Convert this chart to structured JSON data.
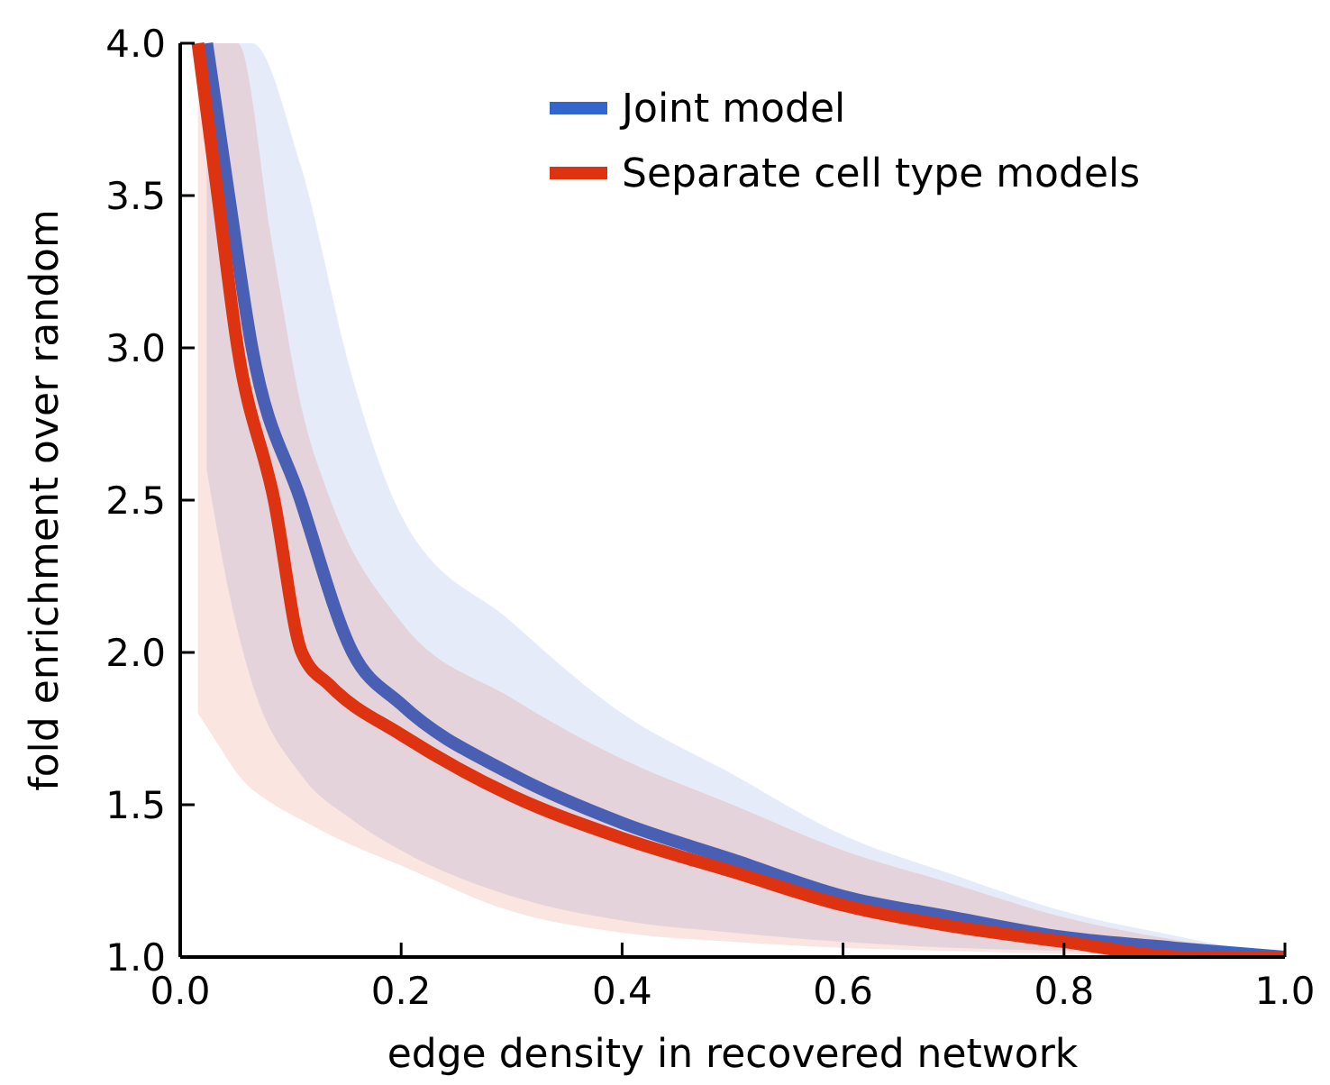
{
  "chart_data": {
    "type": "line",
    "xlabel": "edge density in recovered network",
    "ylabel": "fold enrichment over random",
    "xlim": [
      0,
      1
    ],
    "ylim": [
      1,
      4
    ],
    "xticks": [
      {
        "value": 0,
        "label": "0.0"
      },
      0.2,
      0.4,
      0.6,
      0.8,
      {
        "value": 1,
        "label": "1.0"
      }
    ],
    "yticks": [
      {
        "value": 1,
        "label": "1.0"
      },
      1.5,
      {
        "value": 2,
        "label": "2.0"
      },
      2.5,
      {
        "value": 3,
        "label": "3.0"
      },
      3.5,
      {
        "value": 4,
        "label": "4.0"
      }
    ],
    "grid": false,
    "legend": "top right",
    "line_style": "solid",
    "marker": "none",
    "series": [
      {
        "name": "Joint model",
        "color": "#3366cc",
        "x": [
          0.024,
          0.044,
          0.065,
          0.109,
          0.156,
          0.2,
          0.3,
          0.4,
          0.5,
          0.6,
          0.7,
          0.8,
          0.9,
          1.0
        ],
        "values": [
          4.0,
          3.5,
          3.0,
          2.5,
          2.0,
          1.83,
          1.6,
          1.44,
          1.32,
          1.2,
          1.13,
          1.065,
          1.03,
          1.0
        ],
        "upper": [
          4.0,
          4.0,
          4.0,
          3.6,
          2.9,
          2.45,
          2.1,
          1.8,
          1.6,
          1.4,
          1.27,
          1.15,
          1.07,
          1.0
        ],
        "lower": [
          2.6,
          2.2,
          1.9,
          1.6,
          1.45,
          1.35,
          1.2,
          1.12,
          1.08,
          1.05,
          1.03,
          1.02,
          1.01,
          1.0
        ]
      },
      {
        "name": "Separate cell type models",
        "color": "#dd3311",
        "x": [
          0.016,
          0.034,
          0.052,
          0.085,
          0.11,
          0.136,
          0.2,
          0.3,
          0.4,
          0.5,
          0.6,
          0.7,
          0.8,
          0.91,
          1.0
        ],
        "values": [
          4.0,
          3.5,
          3.0,
          2.5,
          2.0,
          1.89,
          1.73,
          1.53,
          1.39,
          1.28,
          1.17,
          1.1,
          1.05,
          1.0,
          1.0
        ],
        "upper": [
          4.0,
          4.0,
          4.0,
          3.3,
          2.8,
          2.5,
          2.1,
          1.85,
          1.65,
          1.5,
          1.35,
          1.24,
          1.13,
          1.05,
          1.0
        ],
        "lower": [
          1.8,
          1.7,
          1.6,
          1.5,
          1.45,
          1.4,
          1.3,
          1.15,
          1.08,
          1.05,
          1.03,
          1.02,
          1.01,
          1.0,
          1.0
        ]
      }
    ]
  }
}
